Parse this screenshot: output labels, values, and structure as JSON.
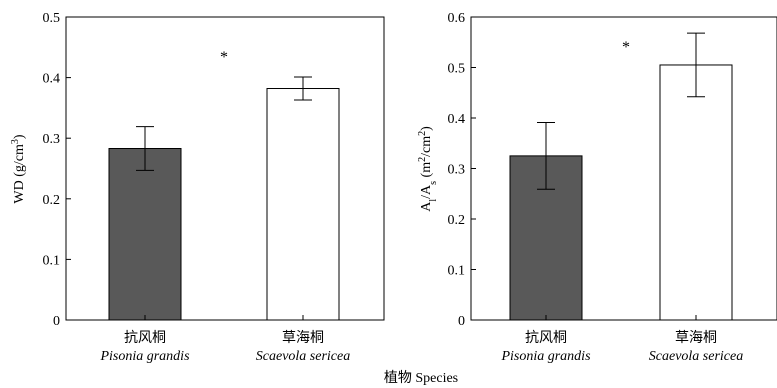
{
  "figure": {
    "x_title": "植物 Species"
  },
  "chart_data": [
    {
      "type": "bar",
      "ylabel": "WD (g/cm³)",
      "ylabel_parts": {
        "pre": "WD (g/cm",
        "sup": "3",
        "post": ")"
      },
      "ylim": [
        0,
        0.5
      ],
      "yticks": [
        "0",
        "0.1",
        "0.2",
        "0.3",
        "0.4",
        "0.5"
      ],
      "categories": [
        {
          "cn": "抗风桐",
          "latin": "Pisonia grandis"
        },
        {
          "cn": "草海桐",
          "latin": "Scaevola sericea"
        }
      ],
      "values": [
        0.283,
        0.382
      ],
      "errors": [
        0.036,
        0.019
      ],
      "bar_colors": [
        "#595959",
        "#ffffff"
      ],
      "significance": "*",
      "grid": false
    },
    {
      "type": "bar",
      "ylabel": "Al/As (m²/cm²)",
      "ylabel_parts": {
        "a": "A",
        "sub1": "l",
        "mid": "/A",
        "sub2": "s",
        "open": " (m",
        "sup1": "2",
        "slash": "/cm",
        "sup2": "2",
        "close": ")"
      },
      "ylim": [
        0,
        0.6
      ],
      "yticks": [
        "0",
        "0.1",
        "0.2",
        "0.3",
        "0.4",
        "0.5",
        "0.6"
      ],
      "categories": [
        {
          "cn": "抗风桐",
          "latin": "Pisonia grandis"
        },
        {
          "cn": "草海桐",
          "latin": "Scaevola sericea"
        }
      ],
      "values": [
        0.325,
        0.505
      ],
      "errors": [
        0.066,
        0.063
      ],
      "bar_colors": [
        "#595959",
        "#ffffff"
      ],
      "significance": "*",
      "grid": false
    }
  ]
}
